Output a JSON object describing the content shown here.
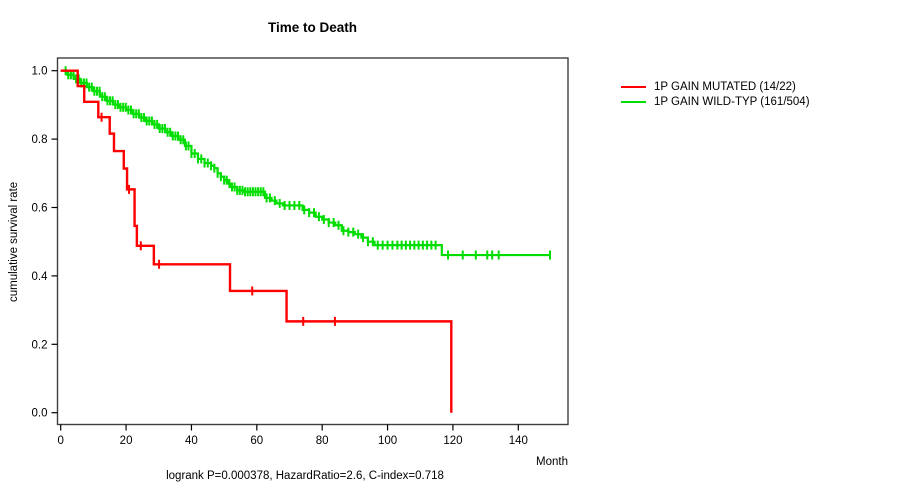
{
  "chart_data": {
    "type": "line",
    "subtype": "kaplan-meier-step",
    "title": "Time to Death",
    "xlabel": "Month",
    "ylabel": "cumulative survival rate",
    "footnote": "logrank P=0.000378, HazardRatio=2.6, C-index=0.718",
    "xlim": [
      0,
      155
    ],
    "ylim": [
      0.0,
      1.0
    ],
    "x_ticks": [
      0,
      20,
      40,
      60,
      80,
      100,
      120,
      140
    ],
    "y_ticks": [
      0.0,
      0.2,
      0.4,
      0.6,
      0.8,
      1.0
    ],
    "grid": false,
    "legend_position": "right-outside",
    "series": [
      {
        "name": "1P GAIN MUTATED (14/22)",
        "color": "#ff0000",
        "dense": false,
        "steps": [
          [
            0,
            1.0
          ],
          [
            5.2,
            0.955
          ],
          [
            7.2,
            0.909
          ],
          [
            11.5,
            0.864
          ],
          [
            15,
            0.816
          ],
          [
            16.3,
            0.765
          ],
          [
            19.3,
            0.714
          ],
          [
            20.3,
            0.653
          ],
          [
            22.6,
            0.546
          ],
          [
            23.3,
            0.488
          ],
          [
            28.5,
            0.434
          ],
          [
            51.8,
            0.356
          ],
          [
            69.1,
            0.267
          ],
          [
            119.5,
            0.0
          ]
        ],
        "censor_times": [
          12.5,
          20.9,
          24.5,
          30.1,
          58.6,
          74.2,
          83.9
        ]
      },
      {
        "name": "1P GAIN WILD-TYP (161/504)",
        "color": "#00dd00",
        "dense": true,
        "steps": [
          [
            0,
            1.0
          ],
          [
            2,
            0.988
          ],
          [
            4,
            0.976
          ],
          [
            6,
            0.964
          ],
          [
            8,
            0.952
          ],
          [
            10,
            0.94
          ],
          [
            12,
            0.924
          ],
          [
            14,
            0.912
          ],
          [
            16,
            0.901
          ],
          [
            18,
            0.893
          ],
          [
            20,
            0.885
          ],
          [
            22,
            0.874
          ],
          [
            24,
            0.863
          ],
          [
            26,
            0.853
          ],
          [
            28,
            0.843
          ],
          [
            30,
            0.831
          ],
          [
            32,
            0.82
          ],
          [
            34,
            0.809
          ],
          [
            36,
            0.798
          ],
          [
            38,
            0.78
          ],
          [
            40,
            0.758
          ],
          [
            42,
            0.742
          ],
          [
            44,
            0.73
          ],
          [
            46,
            0.722
          ],
          [
            47,
            0.715
          ],
          [
            48,
            0.7
          ],
          [
            49,
            0.69
          ],
          [
            50,
            0.68
          ],
          [
            51,
            0.67
          ],
          [
            52,
            0.66
          ],
          [
            54,
            0.65
          ],
          [
            56,
            0.646
          ],
          [
            62.5,
            0.628
          ],
          [
            64.5,
            0.62
          ],
          [
            66,
            0.612
          ],
          [
            68,
            0.606
          ],
          [
            74,
            0.593
          ],
          [
            76,
            0.585
          ],
          [
            78,
            0.573
          ],
          [
            80,
            0.565
          ],
          [
            82,
            0.556
          ],
          [
            84,
            0.548
          ],
          [
            86,
            0.532
          ],
          [
            88,
            0.528
          ],
          [
            90,
            0.522
          ],
          [
            92,
            0.512
          ],
          [
            94,
            0.5
          ],
          [
            96,
            0.49
          ],
          [
            116.6,
            0.461
          ],
          [
            150,
            0.461
          ]
        ],
        "censor_times": [
          1.5,
          2.3,
          3.1,
          3.9,
          4.7,
          5.5,
          6.3,
          7.1,
          7.9,
          8.7,
          9.5,
          10.3,
          11.1,
          11.9,
          12.7,
          13.5,
          14.3,
          15.1,
          15.9,
          16.7,
          17.5,
          18.3,
          19.1,
          19.9,
          20.7,
          21.5,
          22.3,
          23.1,
          23.9,
          24.7,
          25.5,
          26.3,
          27.1,
          27.9,
          28.7,
          29.5,
          30.3,
          31.1,
          31.9,
          32.7,
          33.5,
          34.3,
          35.1,
          35.9,
          36.7,
          37.5,
          38.3,
          39.1,
          40,
          41,
          42,
          43,
          44,
          45,
          46,
          47,
          48,
          49,
          50,
          50.8,
          51.6,
          52.4,
          53.2,
          54,
          54.8,
          55.6,
          56.4,
          57.2,
          58,
          58.8,
          59.6,
          60.4,
          61.2,
          62,
          63,
          64,
          65.5,
          67,
          68.5,
          70,
          71.5,
          73,
          74.5,
          76,
          77.5,
          79,
          80.5,
          82,
          83.5,
          85,
          86.5,
          88,
          89.5,
          91,
          92.5,
          94,
          95.5,
          97,
          98.5,
          100,
          101.5,
          103,
          104.3,
          105.6,
          106.9,
          108.2,
          109.5,
          110.8,
          112.1,
          113.4,
          114.7,
          118.5,
          123,
          127,
          130.5,
          132,
          134,
          149.7
        ]
      }
    ]
  }
}
